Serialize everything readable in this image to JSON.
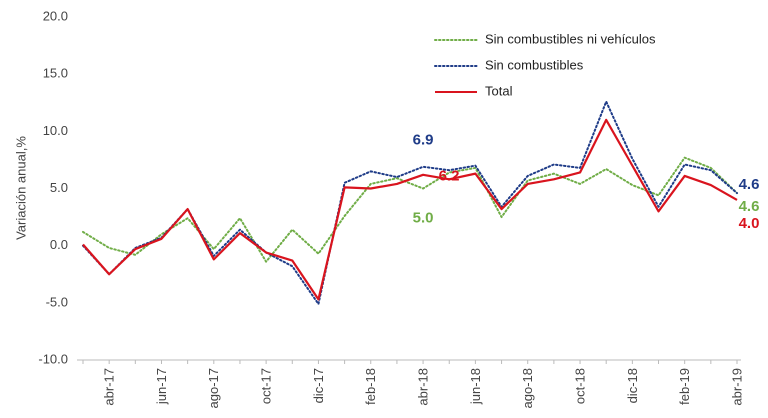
{
  "chart_data": {
    "type": "line",
    "ylabel": "Variación anual,%",
    "categories": [
      null,
      "abr-17",
      null,
      "jun-17",
      null,
      "ago-17",
      null,
      "oct-17",
      null,
      "dic-17",
      null,
      "feb-18",
      null,
      "abr-18",
      null,
      "jun-18",
      null,
      "ago-18",
      null,
      "oct-18",
      null,
      "dic-18",
      null,
      "feb-19",
      null,
      "abr-19"
    ],
    "series": [
      {
        "name": "Sin combustibles ni vehículos",
        "color": "#70ad47",
        "dash": "dotted",
        "values": [
          1.2,
          -0.2,
          -0.8,
          1.0,
          2.4,
          -0.3,
          2.4,
          -1.4,
          1.4,
          -0.7,
          2.6,
          5.4,
          5.9,
          5.0,
          6.4,
          6.8,
          2.5,
          5.7,
          6.3,
          5.4,
          6.7,
          5.3,
          4.4,
          7.7,
          6.8,
          4.6
        ],
        "value_labels": [
          null,
          null,
          null,
          null,
          null,
          null,
          null,
          null,
          null,
          null,
          null,
          null,
          null,
          "5.0",
          null,
          null,
          null,
          null,
          null,
          null,
          null,
          null,
          null,
          null,
          null,
          "4.6"
        ]
      },
      {
        "name": "Sin combustibles",
        "color": "#1f3c88",
        "dash": "dotted",
        "values": [
          0.0,
          -2.5,
          -0.2,
          0.7,
          3.2,
          -0.9,
          1.4,
          -0.6,
          -1.8,
          -5.1,
          5.5,
          6.5,
          6.0,
          6.9,
          6.6,
          7.0,
          3.4,
          6.1,
          7.1,
          6.8,
          12.6,
          7.6,
          3.4,
          7.1,
          6.6,
          4.6
        ],
        "value_labels": [
          null,
          null,
          null,
          null,
          null,
          null,
          null,
          null,
          null,
          null,
          null,
          null,
          null,
          "6.9",
          null,
          null,
          null,
          null,
          null,
          null,
          null,
          null,
          null,
          null,
          null,
          "4.6"
        ]
      },
      {
        "name": "Total",
        "color": "#d9141e",
        "dash": "solid",
        "values": [
          0.1,
          -2.5,
          -0.3,
          0.6,
          3.2,
          -1.2,
          1.1,
          -0.6,
          -1.3,
          -4.7,
          5.1,
          5.0,
          5.4,
          6.2,
          5.8,
          6.3,
          3.2,
          5.4,
          5.8,
          6.4,
          11.0,
          7.0,
          3.0,
          6.1,
          5.3,
          4.0
        ],
        "value_labels": [
          null,
          null,
          null,
          null,
          null,
          null,
          null,
          null,
          null,
          null,
          null,
          null,
          null,
          "6.2",
          null,
          null,
          null,
          null,
          null,
          null,
          null,
          null,
          null,
          null,
          null,
          "4.0"
        ]
      }
    ],
    "ylim": [
      -10,
      20
    ],
    "yticks": [
      {
        "value": -10,
        "label": "-10.0"
      },
      {
        "value": -5,
        "label": "-5.0"
      },
      {
        "value": 0,
        "label": "0.0"
      },
      {
        "value": 5,
        "label": "5.0"
      },
      {
        "value": 10,
        "label": "10.0"
      },
      {
        "value": 15,
        "label": "15.0"
      },
      {
        "value": 20,
        "label": "20.0"
      }
    ],
    "grid": false,
    "legend": "top-right"
  }
}
